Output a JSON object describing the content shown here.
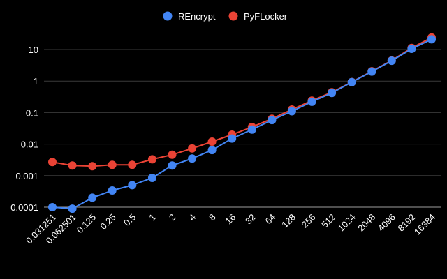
{
  "chart_data": {
    "type": "line",
    "title": "",
    "xlabel": "",
    "ylabel": "",
    "y_scale": "log",
    "ylim": [
      0.0001,
      25
    ],
    "yticks": [
      "0.0001",
      "0.001",
      "0.01",
      "0.1",
      "1",
      "10"
    ],
    "grid": true,
    "legend_position": "top-center",
    "categories": [
      "0.031251",
      "0.062501",
      "0.125",
      "0.25",
      "0.5",
      "1",
      "2",
      "4",
      "8",
      "16",
      "32",
      "64",
      "128",
      "256",
      "512",
      "1024",
      "2048",
      "4096",
      "8192",
      "16384"
    ],
    "series": [
      {
        "name": "REncrypt",
        "color": "#4285f4",
        "values": [
          0.0001,
          9e-05,
          0.0002,
          0.00034,
          0.0005,
          0.00085,
          0.0021,
          0.0035,
          0.0065,
          0.015,
          0.029,
          0.058,
          0.11,
          0.22,
          0.42,
          0.92,
          2.0,
          4.4,
          10.5,
          21
        ]
      },
      {
        "name": "PyFLocker",
        "color": "#ea4335",
        "values": [
          0.0027,
          0.0021,
          0.002,
          0.0022,
          0.0022,
          0.0033,
          0.0046,
          0.0073,
          0.012,
          0.02,
          0.035,
          0.064,
          0.125,
          0.24,
          0.44,
          0.93,
          2.05,
          4.5,
          11.2,
          24
        ]
      }
    ]
  }
}
